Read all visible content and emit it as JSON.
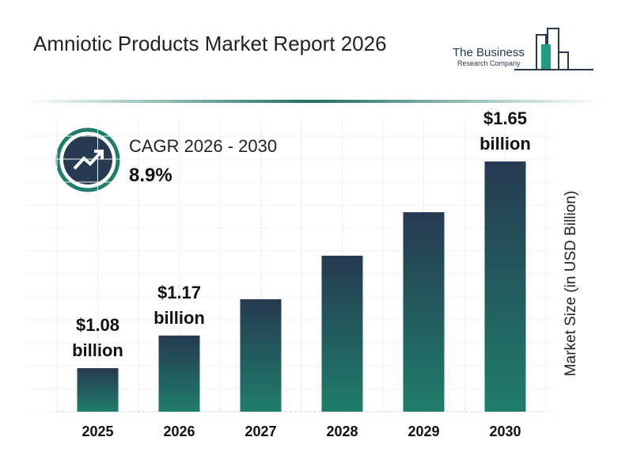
{
  "header": {
    "title": "Amniotic Products Market Report 2026",
    "logo_line1": "The Business",
    "logo_line2": "Research Company"
  },
  "cagr": {
    "label": "CAGR 2026 - 2030",
    "value": "8.9%"
  },
  "chart_data": {
    "type": "bar",
    "y_label": "Market Size (in USD Billion)",
    "categories": [
      "2025",
      "2026",
      "2027",
      "2028",
      "2029",
      "2030"
    ],
    "values": [
      1.08,
      1.17,
      1.27,
      1.39,
      1.51,
      1.65
    ],
    "value_labels": [
      "$1.08 billion",
      "$1.17 billion",
      null,
      null,
      null,
      "$1.65 billion"
    ],
    "color": [
      "#263a52",
      "#1f7d6b"
    ],
    "ylim": [
      0.96,
      1.7
    ],
    "grid": true
  }
}
